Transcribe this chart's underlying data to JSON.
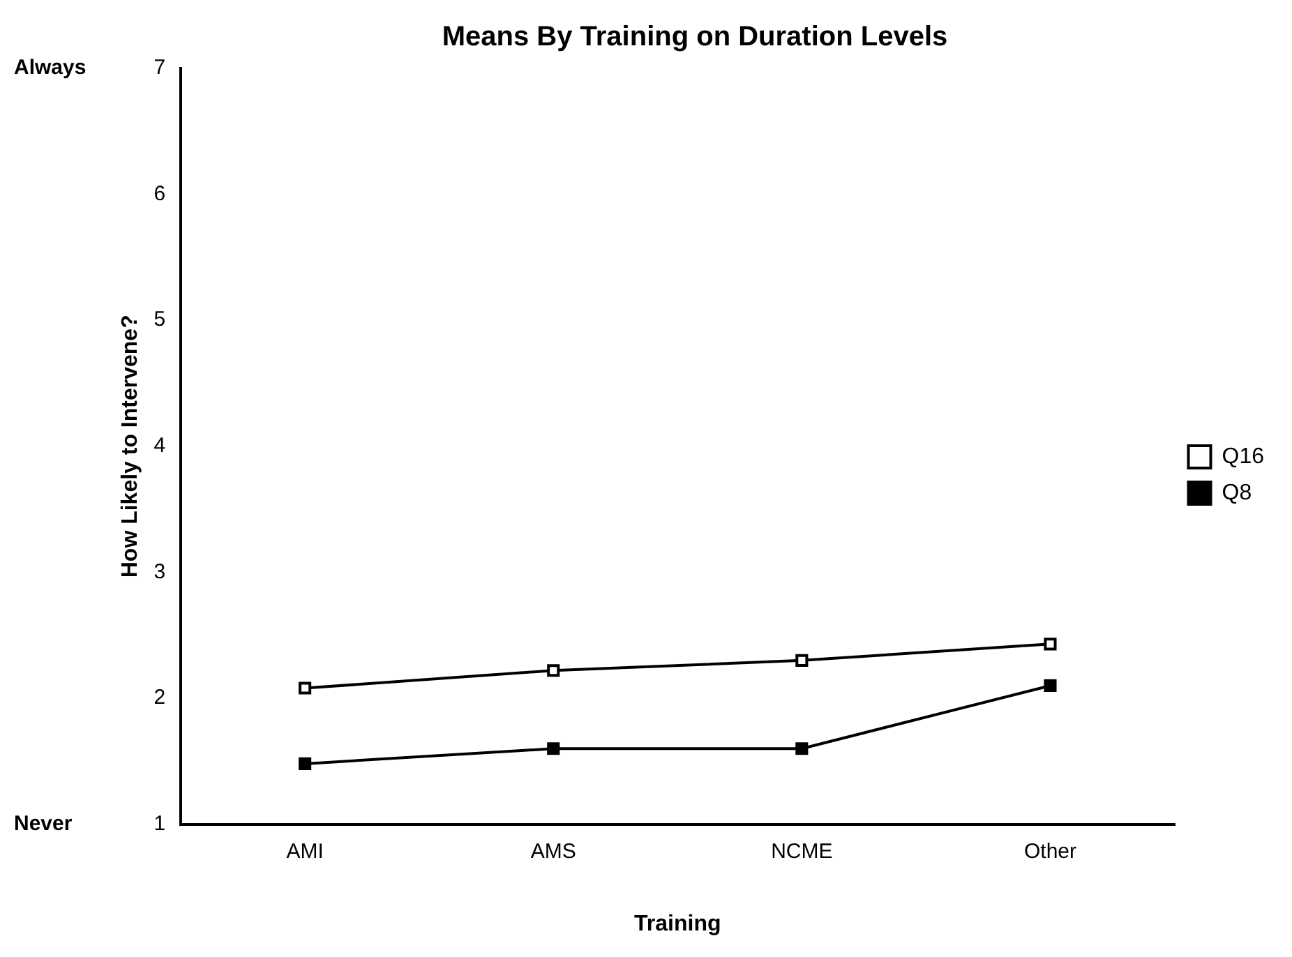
{
  "chart_data": {
    "type": "line",
    "title": "Means By Training on Duration Levels",
    "xlabel": "Training",
    "ylabel": "How Likely to Intervene?",
    "categories": [
      "AMI",
      "AMS",
      "NCME",
      "Other"
    ],
    "series": [
      {
        "name": "Q16",
        "color": "#000000",
        "values": [
          2.08,
          2.22,
          2.3,
          2.43
        ]
      },
      {
        "name": "Q8",
        "color": "#000000",
        "values": [
          1.48,
          1.6,
          1.6,
          2.1
        ]
      }
    ],
    "ylim": [
      1,
      7
    ],
    "yticks": [
      1,
      2,
      3,
      4,
      5,
      6,
      7
    ],
    "annotations": [
      "Always",
      "Never"
    ],
    "grid": false,
    "legend": "right",
    "marker": "square",
    "line_style": "solid"
  }
}
